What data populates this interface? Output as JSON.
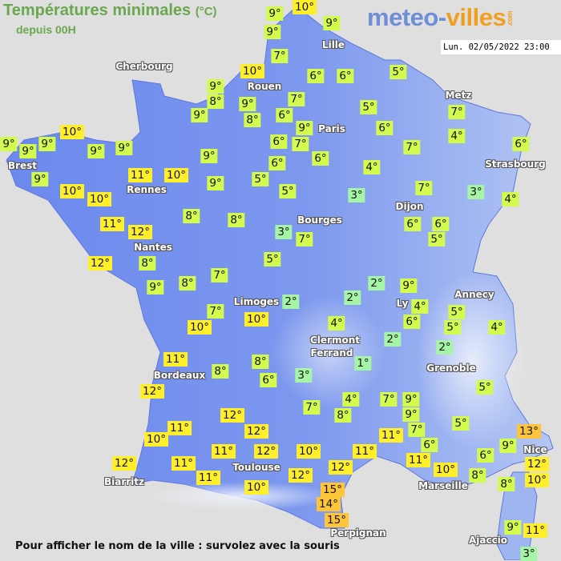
{
  "header": {
    "title": "Températures minimales",
    "unit": "(°C)",
    "subtitle": "depuis 00H",
    "logo_part1": "meteo-",
    "logo_part2": "villes",
    "logo_suffix": ".com",
    "datetime": "Lun. 02/05/2022 23:00"
  },
  "footer": {
    "hint": "Pour afficher le nom de la ville : survolez avec la souris"
  },
  "colors": {
    "cold_1_3": "#a6f5a6",
    "cool_4_9": "#d2fb4e",
    "mild_10_12": "#ffef2a",
    "warm_13_plus": "#ffc53a",
    "land_west": "#6b89ee",
    "land_east": "#b3c6f3",
    "sea": "#dfdfdf",
    "title_green": "#6aa84f"
  },
  "cities": [
    "Cherbourg",
    "Lille",
    "Rouen",
    "Paris",
    "Metz",
    "Strasbourg",
    "Brest",
    "Rennes",
    "Dijon",
    "Bourges",
    "Nantes",
    "Limoges",
    "Ly",
    "Annecy",
    "Clermont",
    "Ferrand",
    "Grenoble",
    "Bordeaux",
    "Toulouse",
    "Biarritz",
    "Marseille",
    "Nice",
    "Perpignan",
    "Ajaccio"
  ],
  "temperatures": [
    "9°",
    "10°",
    "9°",
    "9°",
    "7°",
    "10°",
    "9°",
    "8°",
    "9°",
    "9°",
    "8°",
    "7°",
    "6°",
    "9°",
    "6°",
    "6°",
    "5°",
    "5°",
    "6°",
    "7°",
    "6°",
    "6°",
    "6°",
    "7°",
    "4°",
    "7°",
    "4°",
    "6°",
    "3°",
    "4°",
    "7°",
    "3°",
    "5°",
    "5°",
    "9°",
    "9°",
    "10°",
    "11°",
    "9°",
    "9°",
    "10°",
    "9°",
    "9°",
    "9°",
    "9°",
    "10°",
    "10°",
    "11°",
    "12°",
    "8°",
    "8°",
    "6°",
    "6°",
    "5°",
    "3°",
    "7°",
    "12°",
    "8°",
    "5°",
    "7°",
    "9°",
    "8°",
    "2°",
    "9°",
    "2°",
    "2°",
    "4°",
    "6°",
    "5°",
    "5°",
    "4°",
    "7°",
    "10°",
    "10°",
    "4°",
    "2°",
    "2°",
    "1°",
    "11°",
    "8°",
    "8°",
    "6°",
    "3°",
    "5°",
    "12°",
    "4°",
    "7°",
    "9°",
    "7°",
    "8°",
    "9°",
    "5°",
    "12°",
    "11°",
    "10°",
    "12°",
    "7°",
    "11°",
    "13°",
    "9°",
    "6°",
    "11°",
    "11°",
    "12°",
    "10°",
    "6°",
    "12°",
    "11°",
    "10°",
    "12°",
    "12°",
    "11°",
    "11°",
    "12°",
    "8°",
    "8°",
    "10°",
    "10°",
    "15°",
    "14°",
    "15°",
    "9°",
    "11°",
    "3°"
  ]
}
